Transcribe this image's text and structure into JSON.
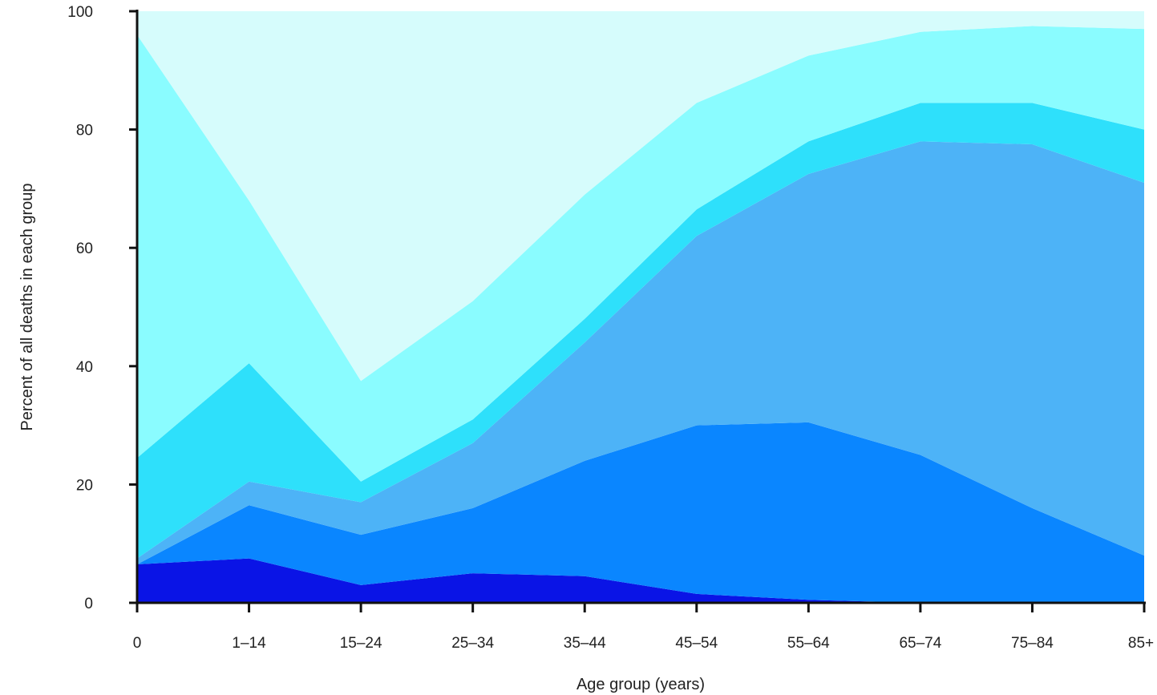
{
  "chart_data": {
    "type": "area",
    "stacked": true,
    "xlabel": "Age group (years)",
    "ylabel": "Percent of all deaths in each group",
    "ylim": [
      0,
      100
    ],
    "yticks": [
      0,
      20,
      40,
      60,
      80,
      100
    ],
    "categories": [
      "0",
      "1–14",
      "15–24",
      "25–34",
      "35–44",
      "45–54",
      "55–64",
      "65–74",
      "75–84",
      "85+"
    ],
    "grid": false,
    "legend": "none",
    "series": [
      {
        "color": "#0a14e6",
        "values": [
          6.5,
          7.5,
          3,
          5,
          4.5,
          1.5,
          0.5,
          0,
          0,
          0
        ]
      },
      {
        "color": "#0a86ff",
        "values": [
          0,
          9,
          8.5,
          11,
          19.5,
          28.5,
          30,
          25,
          16,
          8
        ]
      },
      {
        "color": "#4db3f7",
        "values": [
          1,
          4,
          5.5,
          11,
          20,
          32,
          42,
          53,
          61.5,
          63
        ]
      },
      {
        "color": "#2ee0fb",
        "values": [
          17,
          20,
          3.5,
          4,
          4,
          4.5,
          5.5,
          6.5,
          7,
          9
        ]
      },
      {
        "color": "#8afcff",
        "values": [
          71.5,
          27.5,
          17,
          20,
          21,
          18,
          14.5,
          12,
          13,
          17
        ]
      },
      {
        "color": "#d6fcfc",
        "values": [
          4,
          32,
          62.5,
          49,
          31,
          15.5,
          7.5,
          3.5,
          2.5,
          3
        ]
      }
    ]
  }
}
